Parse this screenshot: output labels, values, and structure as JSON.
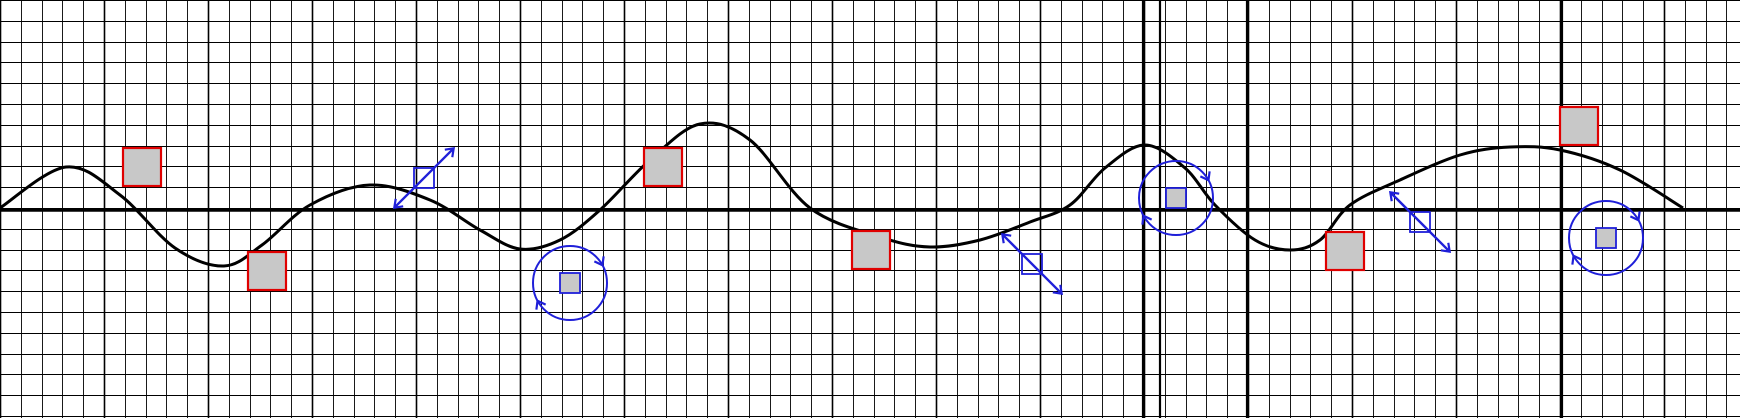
{
  "colors": {
    "background": "#ffffff",
    "grid": "#000000",
    "wave": "#000000",
    "block_fill": "#c8c8c8",
    "block_border": "#e00000",
    "control": "#1f1fd9"
  },
  "grid": {
    "minor_cells_horizontal": 83,
    "minor_cells_vertical": 20,
    "major_every": 5
  },
  "terrain": {
    "type": "sine-wave path"
  },
  "blocks": [
    {
      "kind": "gray-block"
    },
    {
      "kind": "gray-block"
    },
    {
      "kind": "gray-block"
    },
    {
      "kind": "gray-block"
    },
    {
      "kind": "gray-block"
    },
    {
      "kind": "gray-block"
    }
  ],
  "controls": [
    {
      "kind": "diagonal-arrow",
      "icon": "resize-diagonal-icon"
    },
    {
      "kind": "rotate",
      "icon": "rotate-icon"
    },
    {
      "kind": "diagonal-arrow",
      "icon": "resize-diagonal-icon"
    },
    {
      "kind": "rotate",
      "icon": "rotate-icon"
    },
    {
      "kind": "diagonal-arrow",
      "icon": "resize-diagonal-icon"
    },
    {
      "kind": "rotate",
      "icon": "rotate-icon"
    }
  ]
}
